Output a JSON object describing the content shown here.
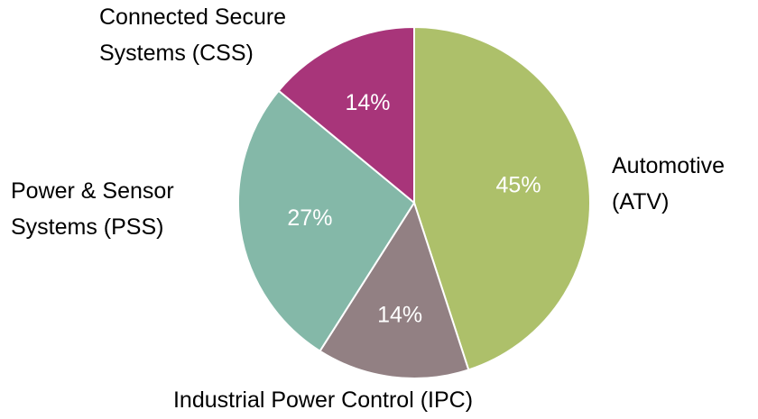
{
  "chart_data": {
    "type": "pie",
    "categories": [
      [
        "Automotive",
        "(ATV)"
      ],
      [
        "Industrial Power Control (IPC)"
      ],
      [
        "Power & Sensor",
        "Systems (PSS)"
      ],
      [
        "Connected Secure",
        "Systems (CSS)"
      ]
    ],
    "values": [
      45,
      14,
      27,
      14
    ],
    "value_labels": [
      "45%",
      "14%",
      "27%",
      "14%"
    ],
    "colors": [
      "#adc06a",
      "#928083",
      "#84b8a8",
      "#a8357a"
    ]
  }
}
